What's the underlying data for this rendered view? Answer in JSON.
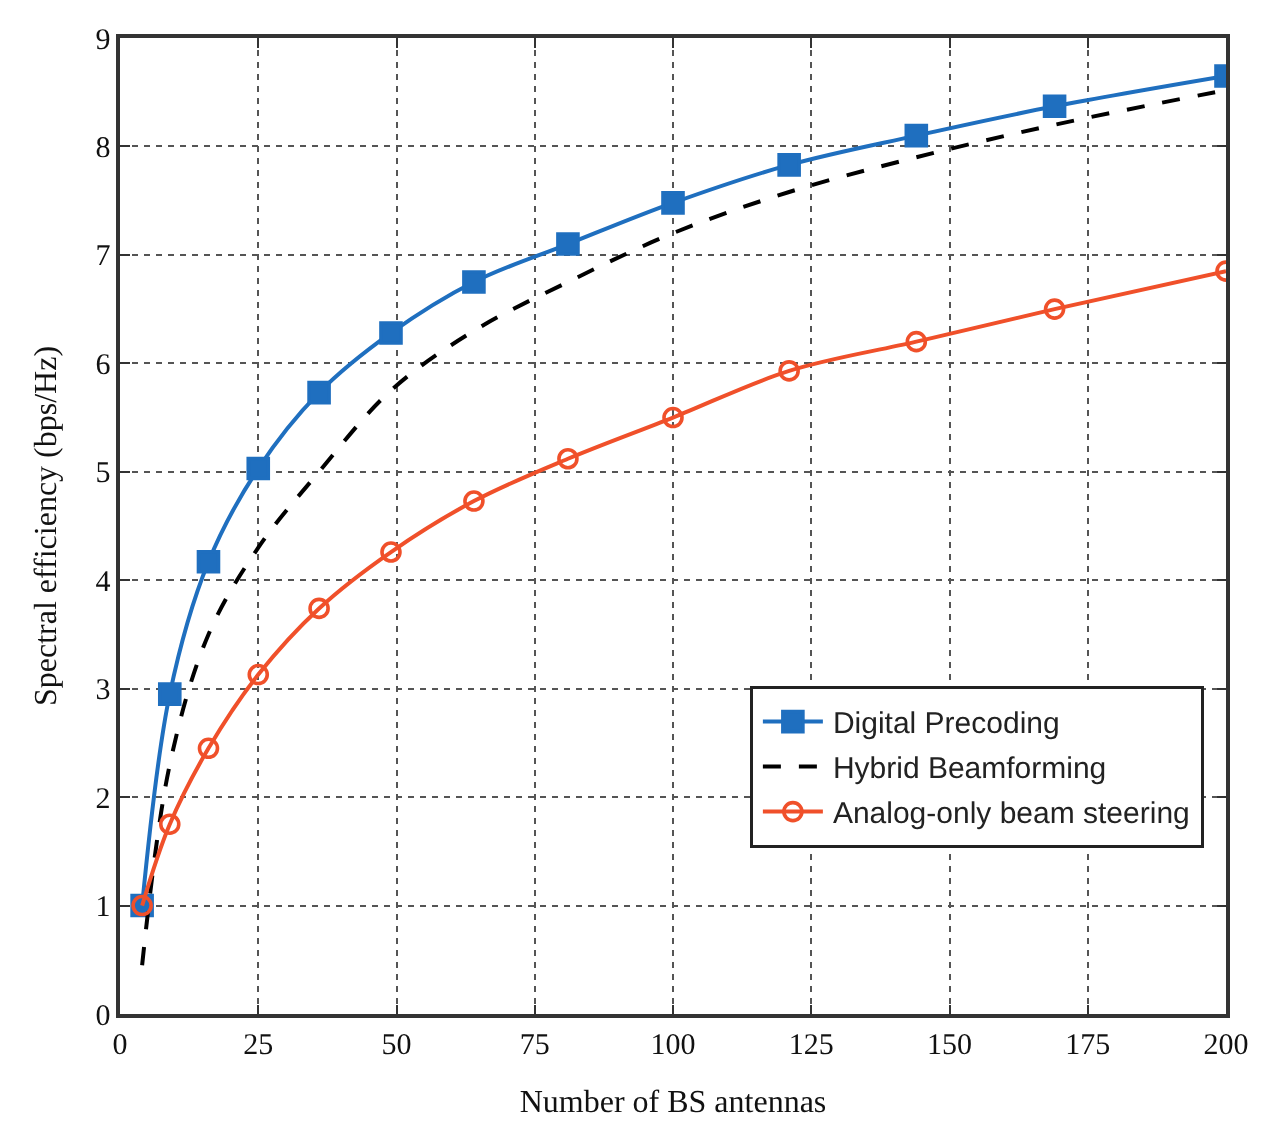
{
  "chart_data": {
    "type": "line",
    "xlabel": "Number of BS antennas",
    "ylabel": "Spectral efficiency (bps/Hz)",
    "xlim": [
      0,
      200
    ],
    "xticks": [
      0,
      25,
      50,
      75,
      100,
      125,
      150,
      175,
      200
    ],
    "ylim": [
      0,
      9
    ],
    "yticks": [
      0,
      1,
      2,
      3,
      4,
      5,
      6,
      7,
      8,
      9
    ],
    "grid": true,
    "legend": "bottom right",
    "series": [
      {
        "name": "Digital Precoding",
        "color": "#1f6fbf",
        "marker": "square",
        "line_style": "solid",
        "x": [
          4,
          9,
          16,
          25,
          36,
          49,
          64,
          81,
          100,
          121,
          144,
          169,
          200
        ],
        "values": [
          1.0,
          2.95,
          4.17,
          5.03,
          5.73,
          6.28,
          6.75,
          7.1,
          7.48,
          7.83,
          8.1,
          8.37,
          8.65
        ]
      },
      {
        "name": "Hybrid Beamforming",
        "color": "#000000",
        "marker": "none",
        "line_style": "dashed",
        "x": [
          4,
          9,
          16,
          25,
          36,
          49,
          64,
          81,
          100,
          121,
          144,
          169,
          200
        ],
        "values": [
          0.45,
          2.3,
          3.5,
          4.3,
          5.0,
          5.75,
          6.3,
          6.75,
          7.2,
          7.58,
          7.9,
          8.2,
          8.52
        ]
      },
      {
        "name": "Analog-only beam steering",
        "color": "#f0502a",
        "marker": "circle",
        "line_style": "solid",
        "x": [
          4,
          9,
          16,
          25,
          36,
          49,
          64,
          81,
          100,
          121,
          144,
          169,
          200
        ],
        "values": [
          1.0,
          1.75,
          2.45,
          3.13,
          3.74,
          4.26,
          4.73,
          5.12,
          5.5,
          5.93,
          6.2,
          6.5,
          6.85
        ]
      }
    ]
  }
}
